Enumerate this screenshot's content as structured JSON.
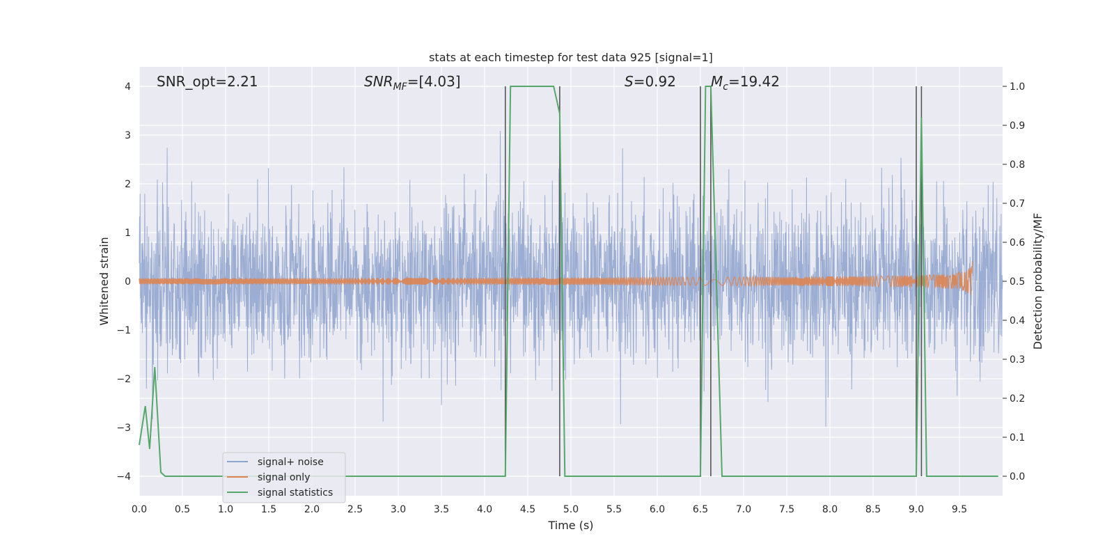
{
  "chart_data": {
    "type": "line",
    "title": "stats at each timestep for test data 925 [signal=1]",
    "xlabel": "Time (s)",
    "ylabel_left": "Whitened strain",
    "ylabel_right": "Detection probability/MF",
    "xlim": [
      0.0,
      10.0
    ],
    "ylim_left": [
      -4.4,
      4.4
    ],
    "ylim_right": [
      -0.05,
      1.05
    ],
    "x_ticks": [
      "0.0",
      "0.5",
      "1.0",
      "1.5",
      "2.0",
      "2.5",
      "3.0",
      "3.5",
      "4.0",
      "4.5",
      "5.0",
      "5.5",
      "6.0",
      "6.5",
      "7.0",
      "7.5",
      "8.0",
      "8.5",
      "9.0",
      "9.5"
    ],
    "y_left_ticks": [
      "4",
      "3",
      "2",
      "1",
      "0",
      "−1",
      "−2",
      "−3",
      "−4"
    ],
    "y_right_ticks": [
      "1.0",
      "0.9",
      "0.8",
      "0.7",
      "0.6",
      "0.5",
      "0.4",
      "0.3",
      "0.2",
      "0.1",
      "0.0"
    ],
    "grid": true,
    "annotations": {
      "snr_opt": "SNR_opt=2.21",
      "snr_mf_sym": "SNR",
      "snr_mf_sub": "MF",
      "snr_mf_val": "=[4.03]",
      "s_sym": "S",
      "s_val": "=0.92",
      "mc_sym": "M",
      "mc_sub": "c",
      "mc_val": "=19.42"
    },
    "series": [
      {
        "name": "signal+ noise",
        "color": "#8da2cc",
        "axis": "left",
        "envelope_sd": 0.85
      },
      {
        "name": "signal only",
        "color": "#dd8452",
        "axis": "left",
        "chirp_end": 9.65,
        "peak_amp": 0.45
      },
      {
        "name": "signal statistics",
        "color": "#55a868",
        "axis": "right",
        "x": [
          0.0,
          0.07,
          0.12,
          0.18,
          0.25,
          0.3,
          4.24,
          4.3,
          4.8,
          4.87,
          4.93,
          6.5,
          6.56,
          6.62,
          6.75,
          9.0,
          9.06,
          9.12,
          9.95
        ],
        "y": [
          0.08,
          0.18,
          0.07,
          0.28,
          0.01,
          0.0,
          0.0,
          1.0,
          1.0,
          0.93,
          0.0,
          0.0,
          1.0,
          1.0,
          0.0,
          0.0,
          0.92,
          0.0,
          0.0
        ]
      }
    ],
    "vlines": [
      4.24,
      4.87,
      6.5,
      6.62,
      9.0,
      9.06
    ],
    "vline_color": "#555555",
    "legend": {
      "location": "lower-left",
      "entries": [
        "signal+ noise",
        "signal only",
        "signal statistics"
      ]
    }
  }
}
